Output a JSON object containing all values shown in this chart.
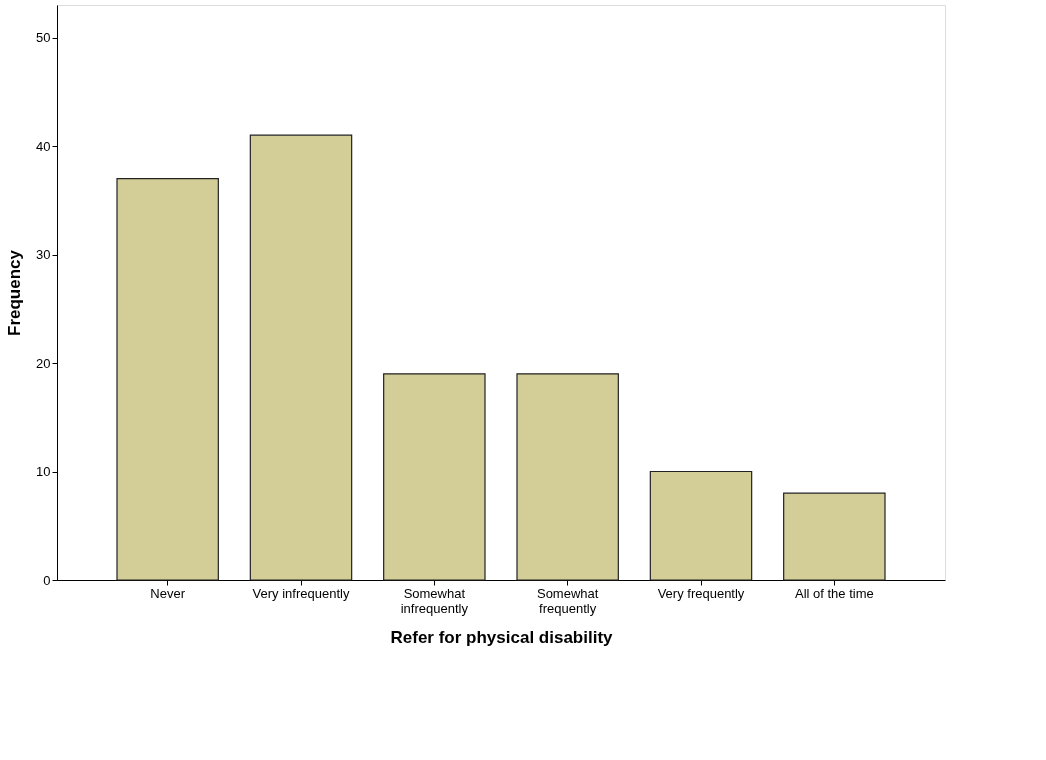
{
  "chart_data": {
    "type": "bar",
    "xlabel": "Refer for physical disability",
    "ylabel": "Frequency",
    "categories": [
      "Never",
      "Very infrequently",
      "Somewhat\ninfrequently",
      "Somewhat\nfrequently",
      "Very frequently",
      "All of the time"
    ],
    "values": [
      37,
      41,
      19,
      19,
      10,
      8
    ],
    "color": "#d3ce97",
    "ylim": [
      0,
      53
    ],
    "yticks": [
      0,
      10,
      20,
      30,
      40,
      50
    ],
    "grid": false
  }
}
